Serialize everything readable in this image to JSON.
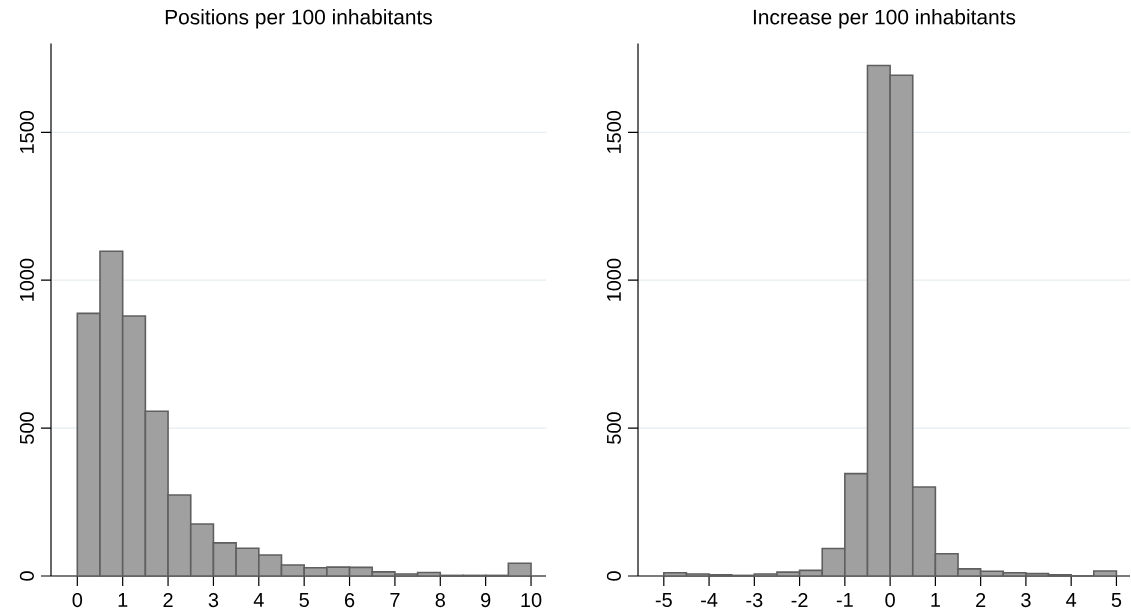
{
  "chart_data": [
    {
      "type": "histogram",
      "title": "Positions per 100 inhabitants",
      "bins": [
        0,
        0.5,
        1,
        1.5,
        2,
        2.5,
        3,
        3.5,
        4,
        4.5,
        5,
        5.5,
        6,
        6.5,
        7,
        7.5,
        8,
        8.5,
        9,
        9.5,
        10
      ],
      "values": [
        888,
        1098,
        879,
        557,
        274,
        176,
        112,
        94,
        71,
        37,
        28,
        30,
        29,
        14,
        7,
        12,
        2,
        2,
        2,
        43
      ],
      "color": "#a0a0a0",
      "xlim": [
        -0.58,
        10.33
      ],
      "ylim": [
        0,
        1800
      ],
      "xticks": [
        0,
        1,
        2,
        3,
        4,
        5,
        6,
        7,
        8,
        9,
        10
      ],
      "yticks": [
        0,
        500,
        1000,
        1500
      ],
      "grid": "y"
    },
    {
      "type": "histogram",
      "title": "Increase per 100 inhabitants",
      "bins": [
        -5,
        -4.5,
        -4,
        -3.5,
        -3,
        -2.5,
        -2,
        -1.5,
        -1,
        -0.5,
        0,
        0.5,
        1,
        1.5,
        2,
        2.5,
        3,
        3.5,
        4,
        4.5,
        5
      ],
      "values": [
        11,
        7,
        4,
        2,
        7,
        13,
        19,
        93,
        346,
        1726,
        1693,
        301,
        75,
        24,
        16,
        11,
        8,
        4,
        0,
        17
      ],
      "color": "#a0a0a0",
      "xlim": [
        -5.57,
        5.3
      ],
      "ylim": [
        0,
        1800
      ],
      "xticks": [
        -5,
        -4,
        -3,
        -2,
        -1,
        0,
        1,
        2,
        3,
        4,
        5
      ],
      "yticks": [
        0,
        500,
        1000,
        1500
      ],
      "grid": "y"
    }
  ]
}
